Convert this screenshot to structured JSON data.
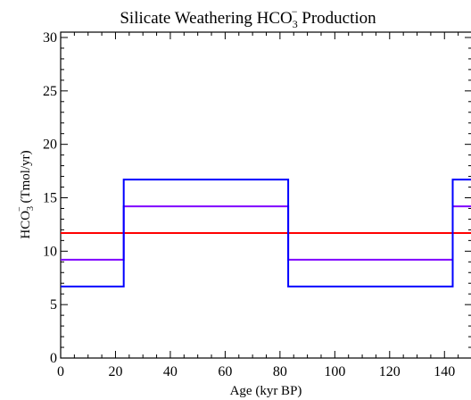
{
  "chart_data": {
    "type": "line",
    "title": {
      "main": "Silicate Weathering HCO",
      "sub": "3",
      "sup": "−",
      "tail": " Production"
    },
    "xlabel": "Age (kyr BP)",
    "ylabel": {
      "main": "HCO",
      "sub": "3",
      "sup": "−",
      "tail": " (Tmol/yr)"
    },
    "xlim": [
      0,
      150
    ],
    "ylim": [
      0,
      30.5
    ],
    "x_ticks": [
      "0",
      "20",
      "40",
      "60",
      "80",
      "100",
      "120",
      "140"
    ],
    "x_tick_values": [
      0,
      20,
      40,
      60,
      80,
      100,
      120,
      140
    ],
    "y_ticks": [
      "0",
      "5",
      "10",
      "15",
      "20",
      "25",
      "30"
    ],
    "y_tick_values": [
      0,
      5,
      10,
      15,
      20,
      25,
      30
    ],
    "step": true,
    "series": [
      {
        "color": "#ff0000",
        "x": [
          0,
          150
        ],
        "y": [
          11.7,
          11.7
        ]
      },
      {
        "color": "#7f00ff",
        "x": [
          0,
          23,
          23,
          83,
          83,
          143,
          143,
          150
        ],
        "y": [
          9.2,
          9.2,
          14.2,
          14.2,
          9.2,
          9.2,
          14.2,
          14.2
        ]
      },
      {
        "color": "#0000ff",
        "x": [
          0,
          23,
          23,
          83,
          83,
          143,
          143,
          150
        ],
        "y": [
          6.7,
          6.7,
          16.7,
          16.7,
          6.7,
          6.7,
          16.7,
          16.7
        ]
      }
    ]
  }
}
